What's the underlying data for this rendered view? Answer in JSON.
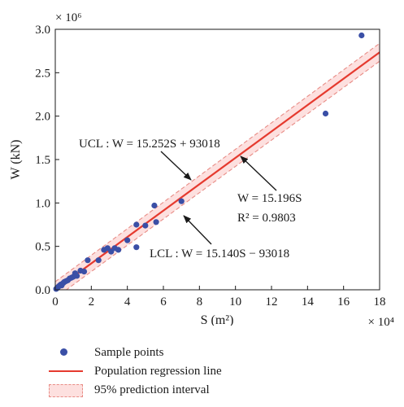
{
  "chart_data": {
    "type": "scatter",
    "x_multiplier_label": "× 10⁴",
    "y_multiplier_label": "× 10⁶",
    "x_axis_label": "S (m²)",
    "y_axis_label": "W (kN)",
    "xlim": [
      0,
      18
    ],
    "ylim": [
      0,
      3.0
    ],
    "x_ticks": [
      "0",
      "2",
      "4",
      "6",
      "8",
      "10",
      "12",
      "14",
      "16",
      "18"
    ],
    "y_ticks": [
      "0.0",
      "0.5",
      "1.0",
      "1.5",
      "2.0",
      "2.5",
      "3.0"
    ],
    "grid": false,
    "legend_position": "bottom",
    "series": [
      {
        "name": "Sample points",
        "kind": "scatter",
        "color": "#3a4fa6",
        "points": [
          {
            "x": 0.05,
            "y": 0.01
          },
          {
            "x": 0.1,
            "y": 0.02
          },
          {
            "x": 0.15,
            "y": 0.03
          },
          {
            "x": 0.2,
            "y": 0.04
          },
          {
            "x": 0.25,
            "y": 0.05
          },
          {
            "x": 0.3,
            "y": 0.06
          },
          {
            "x": 0.35,
            "y": 0.05
          },
          {
            "x": 0.4,
            "y": 0.07
          },
          {
            "x": 0.45,
            "y": 0.08
          },
          {
            "x": 0.5,
            "y": 0.09
          },
          {
            "x": 0.6,
            "y": 0.1
          },
          {
            "x": 0.7,
            "y": 0.11
          },
          {
            "x": 0.8,
            "y": 0.13
          },
          {
            "x": 0.9,
            "y": 0.14
          },
          {
            "x": 1.0,
            "y": 0.15
          },
          {
            "x": 1.1,
            "y": 0.19
          },
          {
            "x": 1.2,
            "y": 0.16
          },
          {
            "x": 1.4,
            "y": 0.22
          },
          {
            "x": 1.6,
            "y": 0.21
          },
          {
            "x": 1.8,
            "y": 0.34
          },
          {
            "x": 2.4,
            "y": 0.34
          },
          {
            "x": 2.7,
            "y": 0.46
          },
          {
            "x": 2.9,
            "y": 0.48
          },
          {
            "x": 3.1,
            "y": 0.44
          },
          {
            "x": 3.3,
            "y": 0.48
          },
          {
            "x": 3.5,
            "y": 0.46
          },
          {
            "x": 4.0,
            "y": 0.57
          },
          {
            "x": 4.5,
            "y": 0.49
          },
          {
            "x": 4.5,
            "y": 0.75
          },
          {
            "x": 5.0,
            "y": 0.74
          },
          {
            "x": 5.5,
            "y": 0.97
          },
          {
            "x": 5.6,
            "y": 0.78
          },
          {
            "x": 7.0,
            "y": 1.02
          },
          {
            "x": 15.0,
            "y": 2.03
          },
          {
            "x": 17.0,
            "y": 2.93
          }
        ]
      },
      {
        "name": "Population regression line",
        "kind": "line",
        "color": "#e53a2f",
        "slope": 15.196,
        "intercept": 0
      },
      {
        "name": "95% prediction interval",
        "kind": "band",
        "fill": "#fde0df",
        "stroke": "#e88c86",
        "upper": {
          "slope": 15.252,
          "intercept": 93018
        },
        "lower": {
          "slope": 15.14,
          "intercept": -93018
        }
      }
    ],
    "annotations": {
      "ucl": "UCL : W = 15.252S + 93018",
      "lcl": "LCL : W = 15.140S − 93018",
      "fit": "W = 15.196S",
      "r2": "R² = 0.9803"
    }
  }
}
